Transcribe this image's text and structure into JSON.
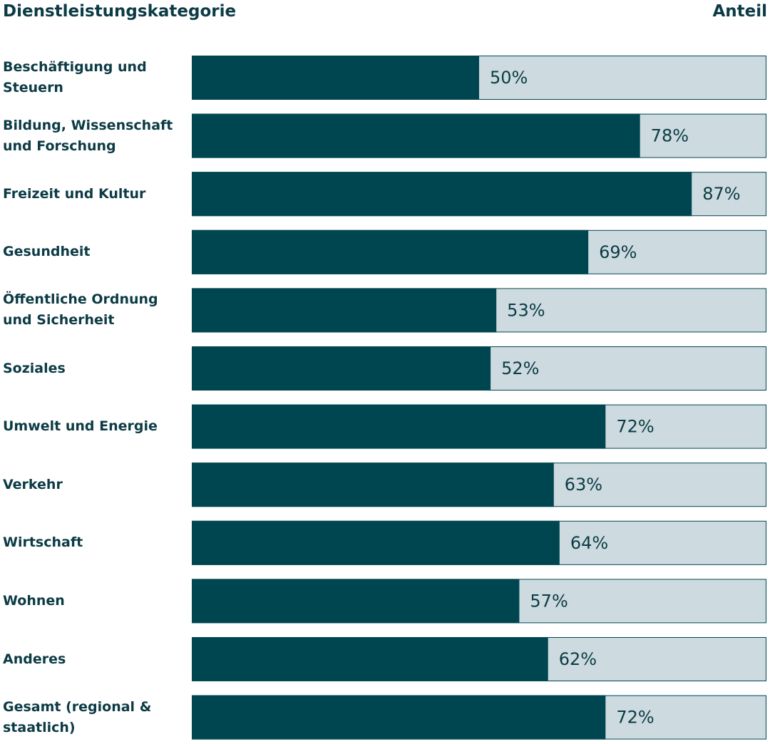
{
  "chart_data": {
    "type": "bar",
    "orientation": "horizontal",
    "category_axis_label": "Dienstleistungskategorie",
    "value_axis_label": "Anteil",
    "categories": [
      "Beschäftigung und Steuern",
      "Bildung, Wissenschaft und Forschung",
      "Freizeit und Kultur",
      "Gesundheit",
      "Öffentliche Ordnung und Sicherheit",
      "Soziales",
      "Umwelt und Energie",
      "Verkehr",
      "Wirtschaft",
      "Wohnen",
      "Anderes",
      "Gesamt (regional & staatlich)"
    ],
    "values": [
      50,
      78,
      87,
      69,
      53,
      52,
      72,
      63,
      64,
      57,
      62,
      72
    ],
    "value_labels": [
      "50%",
      "78%",
      "87%",
      "69%",
      "53%",
      "52%",
      "72%",
      "63%",
      "64%",
      "57%",
      "62%",
      "72%"
    ],
    "xlim": [
      0,
      100
    ],
    "color": "#004650",
    "track_color": "#cddbe0"
  }
}
